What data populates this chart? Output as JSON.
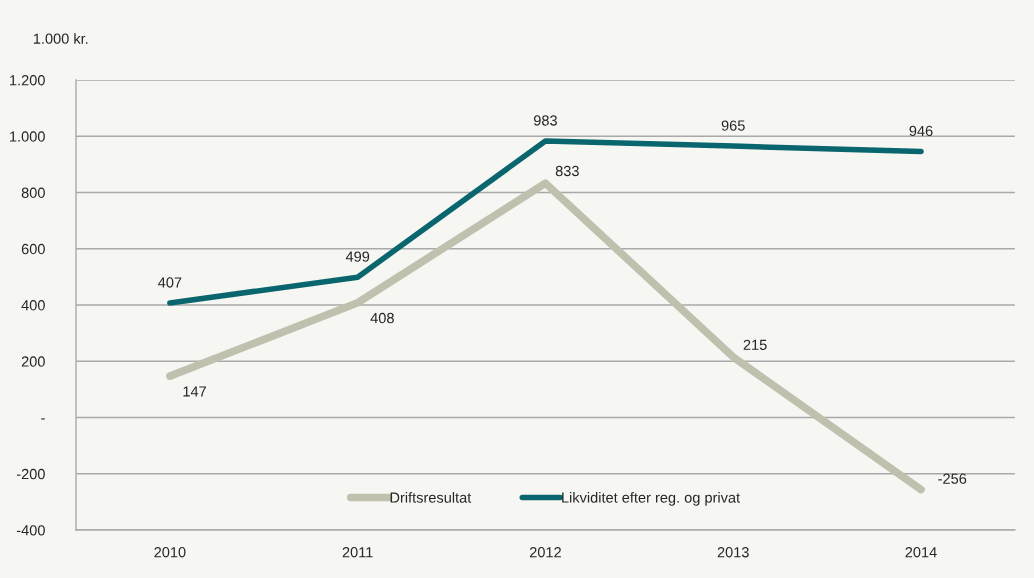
{
  "chart_data": {
    "type": "line",
    "ylabel": "1.000 kr.",
    "categories": [
      "2010",
      "2011",
      "2012",
      "2013",
      "2014"
    ],
    "series": [
      {
        "name": "Driftsresultat",
        "color": "#bfc0ae",
        "values": [
          147,
          408,
          833,
          215,
          -256
        ]
      },
      {
        "name": "Likviditet efter reg. og privat",
        "color": "#0a666e",
        "values": [
          407,
          499,
          983,
          965,
          946
        ]
      }
    ],
    "ylim": [
      -400,
      1200
    ],
    "yticks": [
      -400,
      -200,
      {
        "value": 0,
        "label": "-"
      },
      200,
      400,
      600,
      800,
      {
        "value": 1000,
        "label": "1.000"
      },
      {
        "value": 1200,
        "label": "1.200"
      }
    ],
    "grid": "y",
    "legend": "bottom",
    "data_labels": true,
    "marker": "none",
    "line_style": "solid"
  }
}
